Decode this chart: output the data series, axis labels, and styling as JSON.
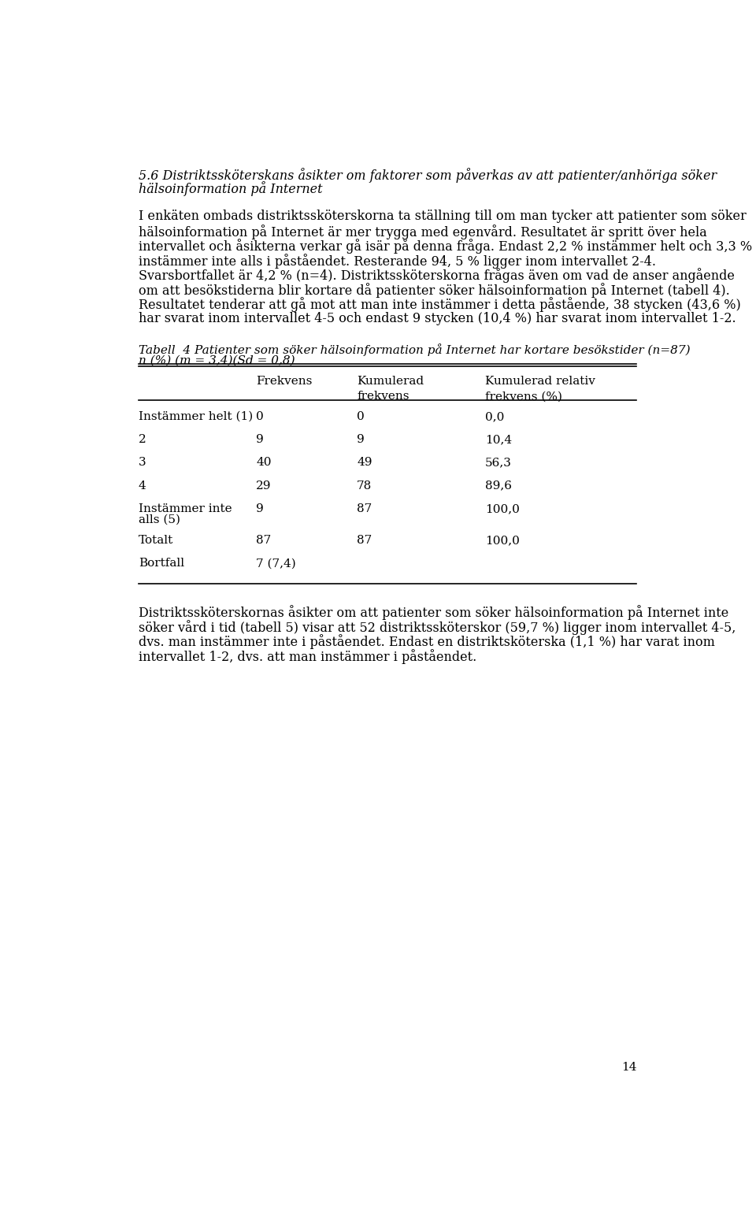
{
  "page_number": "14",
  "background_color": "#ffffff",
  "text_color": "#000000",
  "font_size_body": 11.5,
  "font_size_heading": 11.5,
  "font_size_table": 11.0,
  "font_size_page_num": 11.0,
  "heading_line1": "5.6 Distriktssköterskans åsikter om faktorer som påverkas av att patienter/anhöriga söker",
  "heading_line2": "hälsoinformation på Internet",
  "body_lines": [
    "I enkäten ombads distriktssköterskorna ta ställning till om man tycker att patienter som söker",
    "hälsoinformation på Internet är mer trygga med egenvård. Resultatet är spritt över hela",
    "intervallet och åsikterna verkar gå isär på denna fråga. Endast 2,2 % instämmer helt och 3,3 %",
    "instämmer inte alls i påståendet. Resterande 94, 5 % ligger inom intervallet 2-4.",
    "Svarsbortfallet är 4,2 % (n=4). Distriktssköterskorna frågas även om vad de anser angående",
    "om att besökstiderna blir kortare då patienter söker hälsoinformation på Internet (tabell 4).",
    "Resultatet tenderar att gå mot att man inte instämmer i detta påstående, 38 stycken (43,6 %)",
    "har svarat inom intervallet 4-5 och endast 9 stycken (10,4 %) har svarat inom intervallet 1-2."
  ],
  "table_title_line1": "Tabell  4 Patienter som söker hälsoinformation på Internet har kortare besökstider (n=87)",
  "table_title_line2": "n (%) (m = 3,4)(Sd = 0,8)",
  "col_headers": [
    "Frekvens",
    "Kumulerad\nfrekvens",
    "Kumulerad relativ\nfrekvens (%)"
  ],
  "table_rows": [
    {
      "label": "Instämmer helt (1)",
      "label2": "",
      "freq": "0",
      "cum": "0",
      "pct": "0,0",
      "tall": false
    },
    {
      "label": "2",
      "label2": "",
      "freq": "9",
      "cum": "9",
      "pct": "10,4",
      "tall": false
    },
    {
      "label": "3",
      "label2": "",
      "freq": "40",
      "cum": "49",
      "pct": "56,3",
      "tall": false
    },
    {
      "label": "4",
      "label2": "",
      "freq": "29",
      "cum": "78",
      "pct": "89,6",
      "tall": false
    },
    {
      "label": "Instämmer inte",
      "label2": "alls (5)",
      "freq": "9",
      "cum": "87",
      "pct": "100,0",
      "tall": true
    },
    {
      "label": "Totalt",
      "label2": "",
      "freq": "87",
      "cum": "87",
      "pct": "100,0",
      "tall": false
    },
    {
      "label": "Bortfall",
      "label2": "",
      "freq": "7 (7,4)",
      "cum": "",
      "pct": "",
      "tall": false
    }
  ],
  "footer_lines": [
    "Distriktssköterskornas åsikter om att patienter som söker hälsoinformation på Internet inte",
    "söker vård i tid (tabell 5) visar att 52 distriktssköterskor (59,7 %) ligger inom intervallet 4-5,",
    "dvs. man instämmer inte i påståendet. Endast en distriktsköterska (1,1 %) har varat inom",
    "intervallet 1-2, dvs. att man instämmer i påståendet."
  ]
}
